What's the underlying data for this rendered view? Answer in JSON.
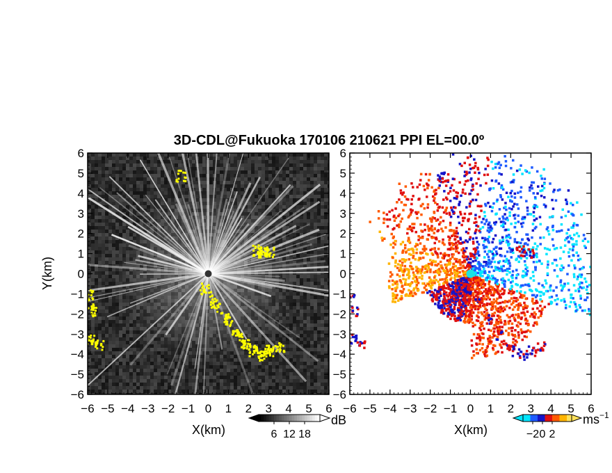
{
  "chart_data": [
    {
      "type": "heatmap",
      "panel": "reflectivity",
      "title": "3D-CDL@Fukuoka 170106 210621 PPI EL=00.0º",
      "xlabel": "X(km)",
      "ylabel": "Y(km)",
      "xlim": [
        -6,
        6
      ],
      "ylim": [
        -6,
        6
      ],
      "xticks": [
        "−6",
        "−5",
        "−4",
        "−3",
        "−2",
        "−1",
        "0",
        "1",
        "2",
        "3",
        "4",
        "5",
        "6"
      ],
      "yticks": [
        "−6",
        "−5",
        "−4",
        "−3",
        "−2",
        "−1",
        "0",
        "1",
        "2",
        "3",
        "4",
        "5",
        "6"
      ],
      "colorbar": {
        "unit": "dB",
        "ticks": [
          "6",
          "12",
          "18"
        ],
        "range": [
          0,
          24
        ]
      },
      "flagged_color": "#ffff00",
      "flagged_regions": [
        {
          "x": [
            -0.2,
            0.3,
            0.9,
            1.4,
            1.8,
            2.2,
            2.6,
            3.0,
            3.5
          ],
          "y": [
            -0.7,
            -1.4,
            -2.2,
            -3.0,
            -3.5,
            -3.8,
            -4.0,
            -3.8,
            -3.6
          ]
        },
        {
          "x": [
            -6.0,
            -5.8
          ],
          "y": [
            -1.0,
            -1.8
          ]
        },
        {
          "x": [
            -5.9,
            -5.5
          ],
          "y": [
            -3.2,
            -3.5
          ]
        },
        {
          "x": [
            2.4,
            2.7,
            3.0
          ],
          "y": [
            1.2,
            1.1,
            1.1
          ]
        },
        {
          "x": [
            -1.4
          ],
          "y": [
            4.9
          ]
        }
      ]
    },
    {
      "type": "heatmap",
      "panel": "doppler_velocity",
      "xlabel": "X(km)",
      "xlim": [
        -6,
        6
      ],
      "ylim": [
        -6,
        6
      ],
      "xticks": [
        "−6",
        "−5",
        "−4",
        "−3",
        "−2",
        "−1",
        "0",
        "1",
        "2",
        "3",
        "4",
        "5",
        "6"
      ],
      "yticks": [
        "−6",
        "−5",
        "−4",
        "−3",
        "−2",
        "−1",
        "0",
        "1",
        "2",
        "3",
        "4",
        "5",
        "6"
      ],
      "colorbar": {
        "unit": "ms",
        "unit_exp": "−1",
        "ticks": [
          "−2",
          "0",
          "2"
        ],
        "range": [
          -4,
          6
        ]
      },
      "velocity_colors": [
        "#00e5ff",
        "#1e5bff",
        "#1414c8",
        "#e01010",
        "#ff5a00",
        "#ffb400",
        "#ffe15a"
      ]
    }
  ]
}
